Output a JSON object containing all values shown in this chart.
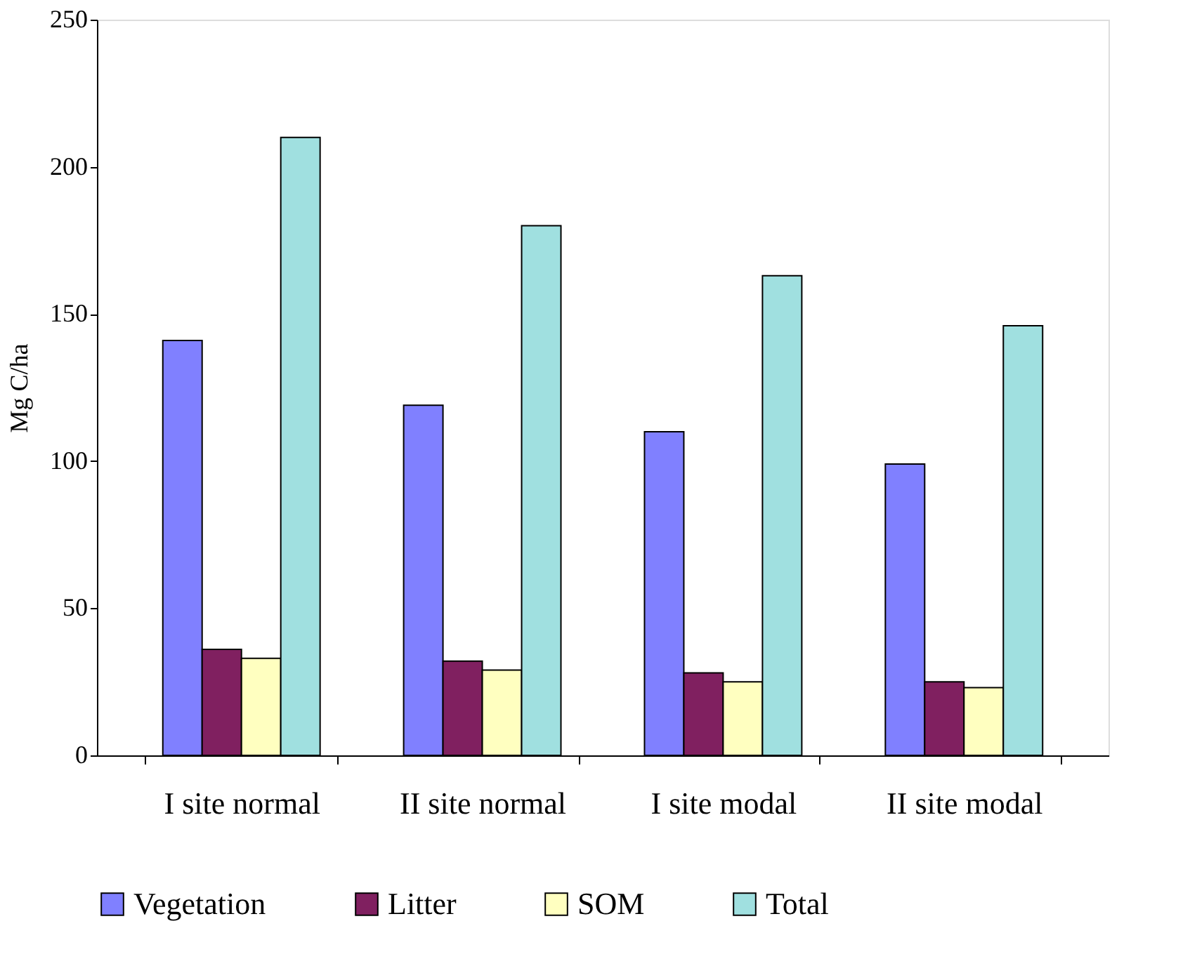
{
  "chart_data": {
    "type": "bar",
    "ylabel": "Mg C/ha",
    "categories": [
      "I site normal",
      "II site normal",
      "I site modal",
      "II site modal"
    ],
    "series": [
      {
        "name": "Vegetation",
        "color": "#8080ff",
        "values": [
          141,
          119,
          110,
          99
        ]
      },
      {
        "name": "Litter",
        "color": "#802060",
        "values": [
          36,
          32,
          28,
          25
        ]
      },
      {
        "name": "SOM",
        "color": "#ffffc0",
        "values": [
          33,
          29,
          25,
          23
        ]
      },
      {
        "name": "Total",
        "color": "#a0e0e0",
        "values": [
          210,
          180,
          163,
          146
        ]
      }
    ],
    "ylim": [
      0,
      250
    ],
    "yticks": [
      0,
      50,
      100,
      150,
      200,
      250
    ],
    "grid": false,
    "legend": "bottom"
  }
}
